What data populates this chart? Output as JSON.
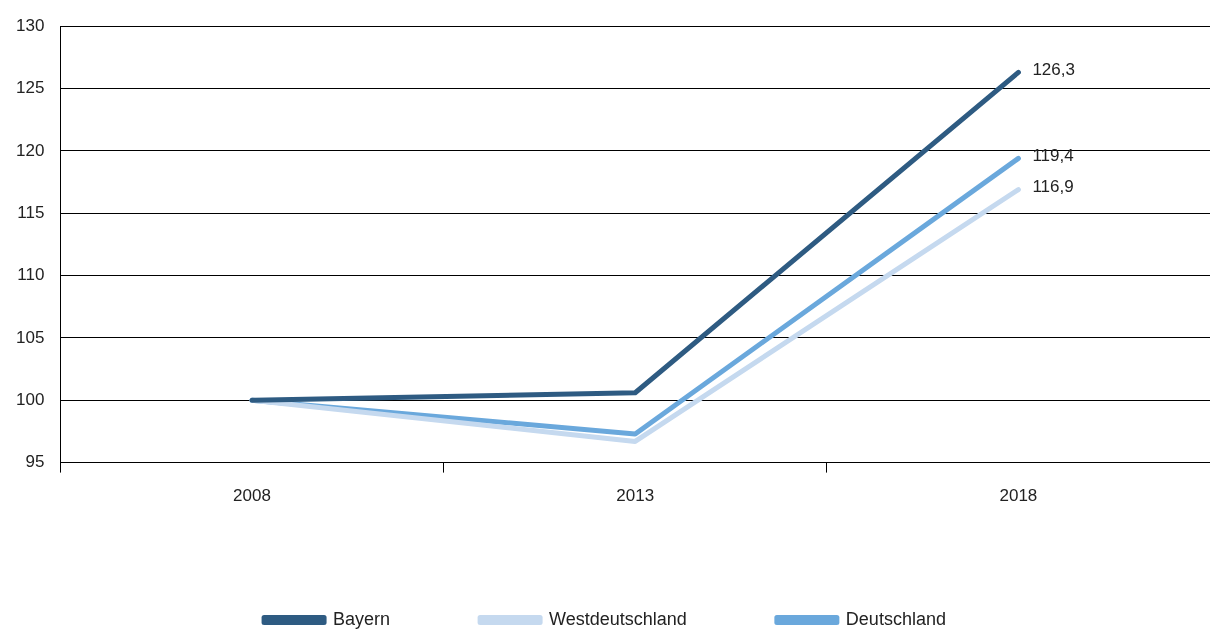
{
  "chart_data": {
    "type": "line",
    "categories": [
      "2008",
      "2013",
      "2018"
    ],
    "series": [
      {
        "name": "Bayern",
        "color": "#2e5b82",
        "values": [
          100,
          100.6,
          126.3
        ],
        "value_labels": [
          null,
          null,
          "126,3"
        ]
      },
      {
        "name": "Westdeutschland",
        "color": "#c5d9ef",
        "values": [
          100,
          96.7,
          116.9
        ],
        "value_labels": [
          null,
          null,
          "116,9"
        ]
      },
      {
        "name": "Deutschland",
        "color": "#6aa8dc",
        "values": [
          100,
          97.3,
          119.4
        ],
        "value_labels": [
          null,
          null,
          "119,4"
        ]
      }
    ],
    "ylim": [
      95,
      130
    ],
    "yticks": [
      95,
      100,
      105,
      110,
      115,
      120,
      125,
      130
    ],
    "grid": "y",
    "legend": "bottom",
    "marker": "none",
    "line_style": "solid"
  }
}
